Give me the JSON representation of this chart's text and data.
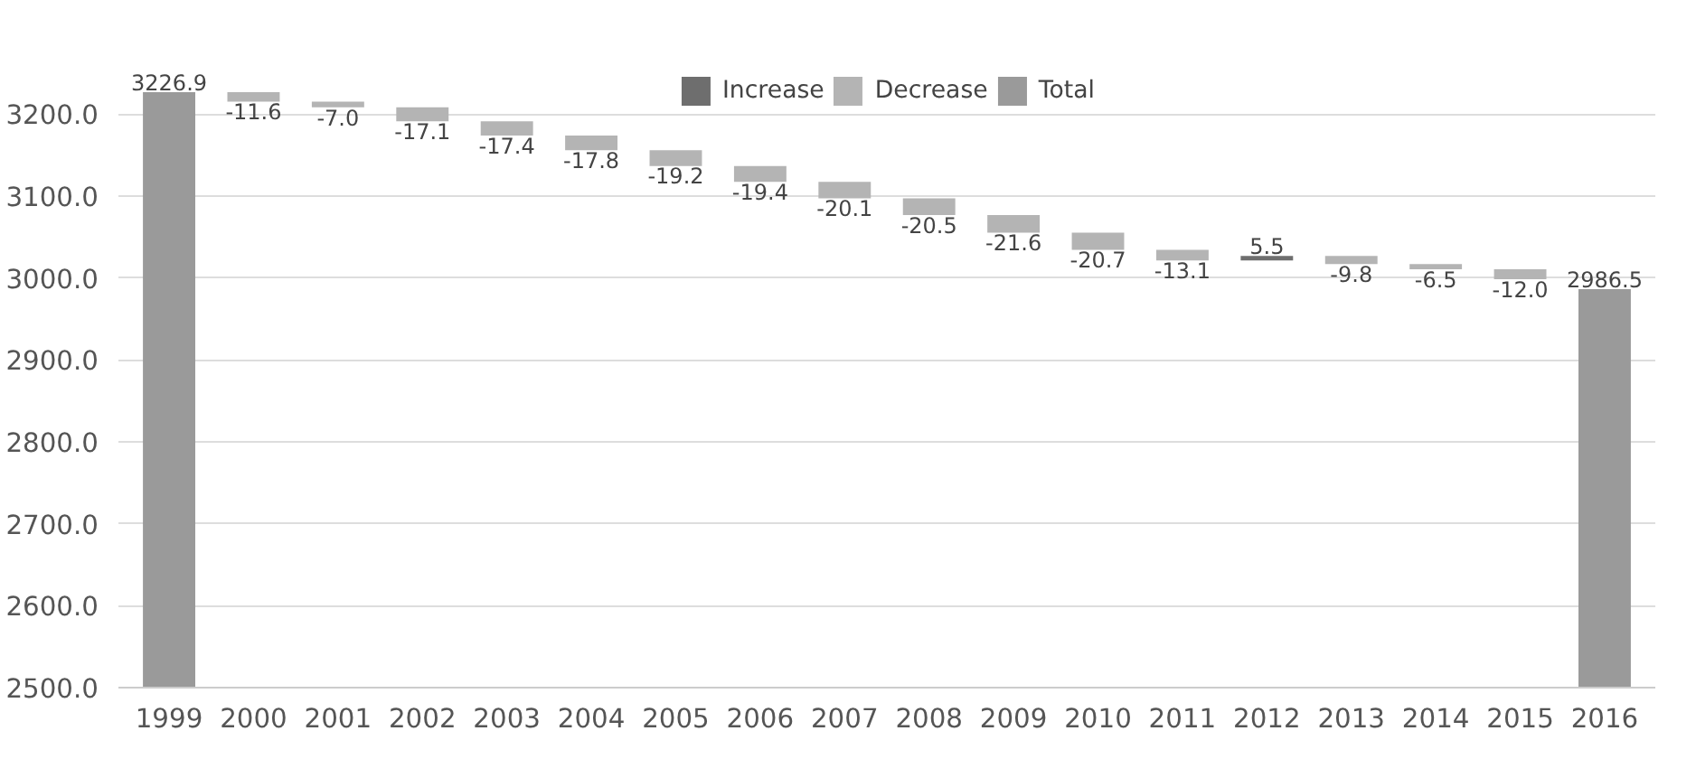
{
  "chart_data": {
    "type": "bar",
    "categories": [
      "1999",
      "2000",
      "2001",
      "2002",
      "2003",
      "2004",
      "2005",
      "2006",
      "2007",
      "2008",
      "2009",
      "2010",
      "2011",
      "2012",
      "2013",
      "2014",
      "2015",
      "2016"
    ],
    "series": [
      {
        "name": "Increase",
        "color": "#6e6e6e",
        "values": [
          null,
          null,
          null,
          null,
          null,
          null,
          null,
          null,
          null,
          null,
          null,
          null,
          null,
          5.5,
          null,
          null,
          null,
          null
        ],
        "base": [
          null,
          null,
          null,
          null,
          null,
          null,
          null,
          null,
          null,
          null,
          null,
          null,
          null,
          3021.4,
          null,
          null,
          null,
          null
        ],
        "value_labels": [
          null,
          null,
          null,
          null,
          null,
          null,
          null,
          null,
          null,
          null,
          null,
          null,
          null,
          "5.5",
          null,
          null,
          null,
          null
        ]
      },
      {
        "name": "Decrease",
        "color": "#b4b4b4",
        "values": [
          null,
          -11.6,
          -7.0,
          -17.1,
          -17.4,
          -17.8,
          -19.2,
          -19.4,
          -20.1,
          -20.5,
          -21.6,
          -20.7,
          -13.1,
          null,
          -9.8,
          -6.5,
          -12.0,
          null
        ],
        "base": [
          null,
          3226.9,
          3215.3,
          3208.3,
          3191.2,
          3173.8,
          3156.0,
          3136.8,
          3117.4,
          3097.3,
          3076.8,
          3055.2,
          3034.5,
          null,
          3026.9,
          3017.1,
          3010.6,
          null
        ],
        "value_labels": [
          null,
          "-11.6",
          "-7.0",
          "-17.1",
          "-17.4",
          "-17.8",
          "-19.2",
          "-19.4",
          "-20.1",
          "-20.5",
          "-21.6",
          "-20.7",
          "-13.1",
          null,
          "-9.8",
          "-6.5",
          "-12.0",
          null
        ]
      },
      {
        "name": "Total",
        "color": "#9a9a9a",
        "values": [
          3226.9,
          null,
          null,
          null,
          null,
          null,
          null,
          null,
          null,
          null,
          null,
          null,
          null,
          null,
          null,
          null,
          null,
          2986.5
        ],
        "value_labels": [
          "3226.9",
          null,
          null,
          null,
          null,
          null,
          null,
          null,
          null,
          null,
          null,
          null,
          null,
          null,
          null,
          null,
          null,
          "2986.5"
        ]
      }
    ],
    "ylim": [
      2500,
      3250
    ],
    "yticks": [
      {
        "value": 2500,
        "label": "2500.0"
      },
      {
        "value": 2600,
        "label": "2600.0"
      },
      {
        "value": 2700,
        "label": "2700.0"
      },
      {
        "value": 2800,
        "label": "2800.0"
      },
      {
        "value": 2900,
        "label": "2900.0"
      },
      {
        "value": 3000,
        "label": "3000.0"
      },
      {
        "value": 3100,
        "label": "3100.0"
      },
      {
        "value": 3200,
        "label": "3200.0"
      }
    ],
    "grid": "y",
    "legend": "top"
  }
}
